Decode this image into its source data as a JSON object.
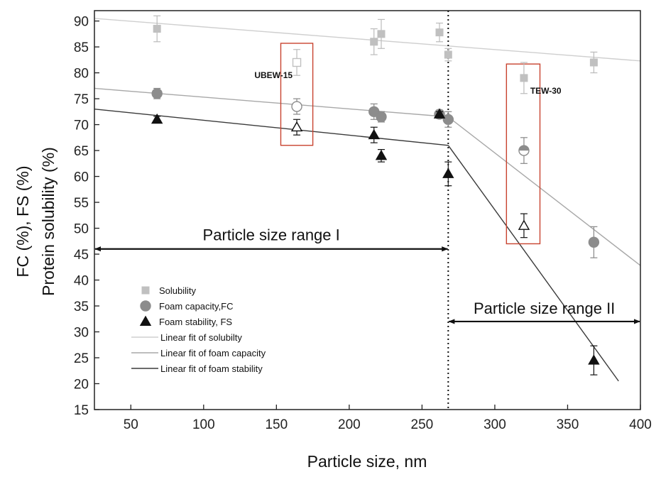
{
  "chart_data": {
    "type": "scatter",
    "xlabel": "Particle size, nm",
    "ylabel": "Protein solubility (%)",
    "ylabel2": "FC (%), FS (%)",
    "xlim": [
      25,
      400
    ],
    "ylim": [
      15,
      92
    ],
    "x_ticks": [
      50,
      100,
      150,
      200,
      250,
      300,
      350,
      400
    ],
    "y_ticks": [
      15,
      20,
      25,
      30,
      35,
      40,
      45,
      50,
      55,
      60,
      65,
      70,
      75,
      80,
      85,
      90
    ],
    "vline_x": 268,
    "series": [
      {
        "name": "Solubility",
        "marker": "square",
        "color": "#c0c0c0",
        "points": [
          {
            "x": 68,
            "y": 88.5,
            "err": 2.5
          },
          {
            "x": 164,
            "y": 82.0,
            "err": 2.5,
            "open": true
          },
          {
            "x": 217,
            "y": 86.0,
            "err": 2.5
          },
          {
            "x": 222,
            "y": 87.5,
            "err": 2.8
          },
          {
            "x": 262,
            "y": 87.8,
            "err": 1.8
          },
          {
            "x": 268,
            "y": 83.5,
            "err": 1.2
          },
          {
            "x": 320,
            "y": 79.0,
            "err": 3.0
          },
          {
            "x": 368,
            "y": 82.0,
            "err": 2.0
          }
        ]
      },
      {
        "name": "Foam capacity,FC",
        "marker": "circle",
        "color": "#8c8c8c",
        "points": [
          {
            "x": 68,
            "y": 76.0,
            "err": 1.0
          },
          {
            "x": 164,
            "y": 73.5,
            "err": 1.5,
            "open": true
          },
          {
            "x": 217,
            "y": 72.5,
            "err": 1.5
          },
          {
            "x": 222,
            "y": 71.5,
            "err": 1.0
          },
          {
            "x": 262,
            "y": 72.0,
            "err": 0.8
          },
          {
            "x": 268,
            "y": 71.0,
            "err": 1.5
          },
          {
            "x": 320,
            "y": 65.0,
            "err": 2.5,
            "half": true
          },
          {
            "x": 368,
            "y": 47.3,
            "err": 3.0
          }
        ]
      },
      {
        "name": "Foam stability, FS",
        "marker": "triangle",
        "color": "#111111",
        "points": [
          {
            "x": 68,
            "y": 71.0,
            "err": 0.6
          },
          {
            "x": 164,
            "y": 69.5,
            "err": 1.5,
            "open": true
          },
          {
            "x": 217,
            "y": 68.0,
            "err": 1.5
          },
          {
            "x": 222,
            "y": 64.0,
            "err": 1.2
          },
          {
            "x": 262,
            "y": 72.0,
            "err": 0.5
          },
          {
            "x": 268,
            "y": 60.5,
            "err": 2.3
          },
          {
            "x": 320,
            "y": 50.5,
            "err": 2.3,
            "open": true
          },
          {
            "x": 368,
            "y": 24.5,
            "err": 2.8
          }
        ]
      }
    ],
    "fits": [
      {
        "name": "Linear fit of solubilty",
        "color": "#cfcfcf",
        "segments": [
          [
            [
              25,
              90.5
            ],
            [
              400,
              82.3
            ]
          ]
        ]
      },
      {
        "name": "Linear fit of foam capacity",
        "color": "#a8a8a8",
        "segments": [
          [
            [
              25,
              77.0
            ],
            [
              268,
              71.5
            ]
          ],
          [
            [
              268,
              71.5
            ],
            [
              400,
              42.8
            ]
          ]
        ]
      },
      {
        "name": "Linear fit of foam stability",
        "color": "#3a3a3a",
        "segments": [
          [
            [
              25,
              73.0
            ],
            [
              268,
              66.0
            ]
          ],
          [
            [
              268,
              66.0
            ],
            [
              385,
              20.5
            ]
          ]
        ]
      }
    ],
    "annotations": [
      {
        "text": "UBEW-15",
        "x": 148,
        "y": 79.0
      },
      {
        "text": "TEW-30",
        "x": 335,
        "y": 76.0
      }
    ],
    "boxes": [
      {
        "x0": 153,
        "x1": 175,
        "y0": 66.0,
        "y1": 85.7
      },
      {
        "x0": 308,
        "x1": 331,
        "y0": 47.0,
        "y1": 81.7
      }
    ],
    "ranges": [
      {
        "text": "Particle size range I",
        "x0": 25,
        "x1": 268,
        "y": 46.0,
        "label_y": 48.8
      },
      {
        "text": "Particle size range II",
        "x0": 268,
        "x1": 400,
        "y": 32.0,
        "label_y": 34.6
      }
    ],
    "legend_position": "lower-left"
  }
}
